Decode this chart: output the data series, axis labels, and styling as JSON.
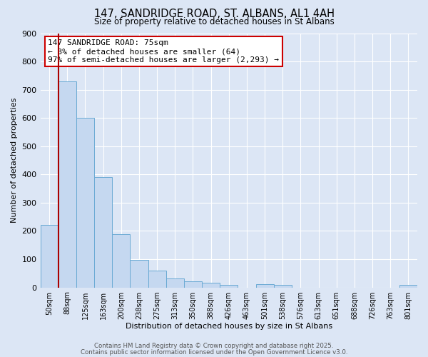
{
  "title": "147, SANDRIDGE ROAD, ST. ALBANS, AL1 4AH",
  "subtitle": "Size of property relative to detached houses in St Albans",
  "xlabel": "Distribution of detached houses by size in St Albans",
  "ylabel": "Number of detached properties",
  "categories": [
    "50sqm",
    "88sqm",
    "125sqm",
    "163sqm",
    "200sqm",
    "238sqm",
    "275sqm",
    "313sqm",
    "350sqm",
    "388sqm",
    "426sqm",
    "463sqm",
    "501sqm",
    "538sqm",
    "576sqm",
    "613sqm",
    "651sqm",
    "688sqm",
    "726sqm",
    "763sqm",
    "801sqm"
  ],
  "values": [
    222,
    730,
    600,
    390,
    188,
    98,
    60,
    32,
    22,
    17,
    8,
    0,
    12,
    10,
    0,
    0,
    0,
    0,
    0,
    0,
    8
  ],
  "bar_color": "#c5d8f0",
  "bar_edge_color": "#6aaad4",
  "background_color": "#dce6f5",
  "grid_color": "#ffffff",
  "vline_color": "#aa0000",
  "annotation_text": "147 SANDRIDGE ROAD: 75sqm\n← 3% of detached houses are smaller (64)\n97% of semi-detached houses are larger (2,293) →",
  "annotation_box_color": "#ffffff",
  "annotation_box_edge": "#cc0000",
  "ylim": [
    0,
    900
  ],
  "yticks": [
    0,
    100,
    200,
    300,
    400,
    500,
    600,
    700,
    800,
    900
  ],
  "footer1": "Contains HM Land Registry data © Crown copyright and database right 2025.",
  "footer2": "Contains public sector information licensed under the Open Government Licence v3.0."
}
